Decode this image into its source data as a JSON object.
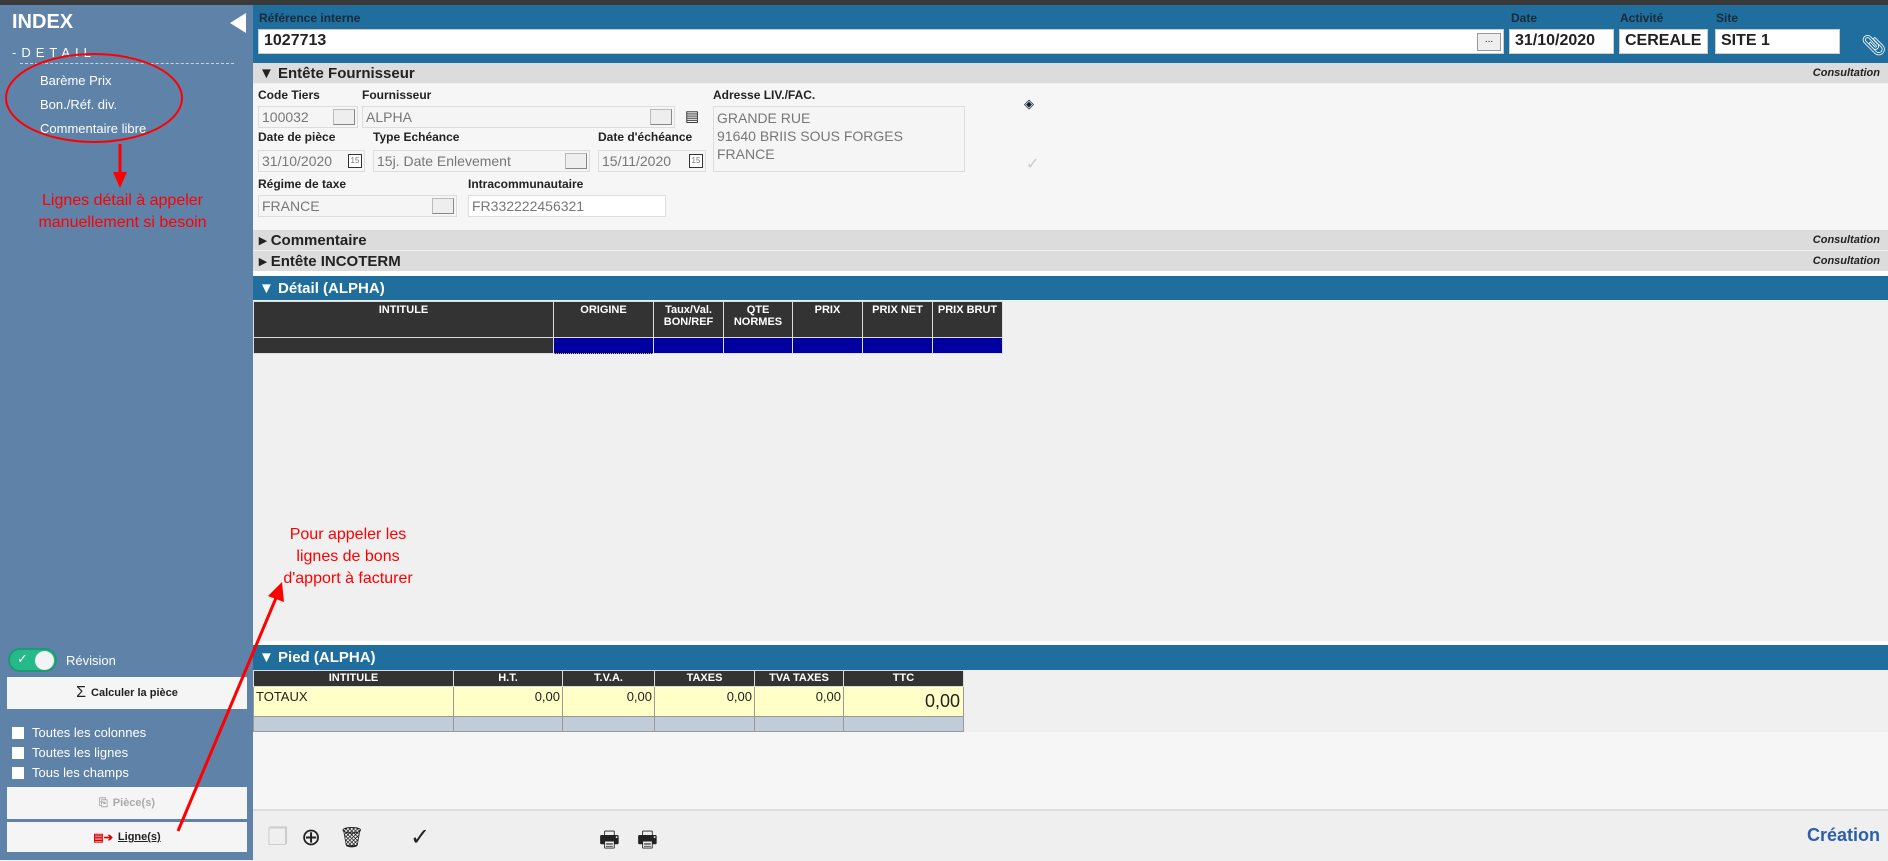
{
  "sidebar": {
    "title": "INDEX",
    "section": "-DETAIL",
    "items": [
      {
        "label": "Barème Prix"
      },
      {
        "label": "Bon./Réf. div."
      },
      {
        "label": "Commentaire libre"
      }
    ],
    "revision_label": "Révision",
    "revision_on": true,
    "compute_button": "Calculer la pièce",
    "checkboxes": [
      {
        "label": "Toutes les colonnes",
        "checked": false
      },
      {
        "label": "Toutes les lignes",
        "checked": false
      },
      {
        "label": "Tous les champs",
        "checked": false
      }
    ],
    "pieces_button": "Pièce(s)",
    "lignes_button": "Ligne(s)"
  },
  "annotations": {
    "detail_note": [
      "Lignes détail à appeler",
      "manuellement si besoin"
    ],
    "lignes_note": [
      "Pour appeler les",
      "lignes de bons",
      "d'apport à facturer"
    ],
    "color": "#ff0000"
  },
  "header": {
    "ref_label": "Référence interne",
    "ref_value": "1027713",
    "ref_button": "...",
    "date_label": "Date",
    "date_value": "31/10/2020",
    "activite_label": "Activité",
    "activite_value": "CEREALE",
    "site_label": "Site",
    "site_value": "SITE 1"
  },
  "fournisseur": {
    "title": "Entête Fournisseur",
    "status": "Consultation",
    "code_tiers_label": "Code Tiers",
    "code_tiers": "100032",
    "fournisseur_label": "Fournisseur",
    "fournisseur": "ALPHA",
    "adresse_label": "Adresse LIV./FAC.",
    "adresse": [
      "GRANDE RUE",
      "91640  BRIIS SOUS FORGES",
      "FRANCE"
    ],
    "date_piece_label": "Date de pièce",
    "date_piece": "31/10/2020",
    "type_echeance_label": "Type Echéance",
    "type_echeance": "15j. Date Enlevement",
    "date_echeance_label": "Date d'échéance",
    "date_echeance": "15/11/2020",
    "regime_label": "Régime de taxe",
    "regime": "FRANCE",
    "intracom_label": "Intracommunautaire",
    "intracom": "FR332222456321",
    "cal_glyph": "15"
  },
  "commentaire": {
    "title": "Commentaire",
    "status": "Consultation"
  },
  "incoterm": {
    "title": "Entête INCOTERM",
    "status": "Consultation"
  },
  "detail": {
    "title": "Détail (ALPHA)",
    "columns": [
      "INTITULE",
      "ORIGINE",
      "Taux/Val. BON/REF",
      "QTE NORMES",
      "PRIX",
      "PRIX NET",
      "PRIX BRUT"
    ]
  },
  "pied": {
    "title": "Pied (ALPHA)",
    "columns": [
      "INTITULE",
      "H.T.",
      "T.V.A.",
      "TAXES",
      "TVA TAXES",
      "TTC"
    ],
    "row": [
      "TOTAUX",
      "0,00",
      "0,00",
      "0,00",
      "0,00",
      "0,00"
    ]
  },
  "footer": {
    "mode": "Création"
  },
  "colors": {
    "header_blue": "#1f6e9e",
    "sidebar": "#5f82a9",
    "selected_cell": "#0000a0",
    "totals_bg": "#ffffc8"
  }
}
